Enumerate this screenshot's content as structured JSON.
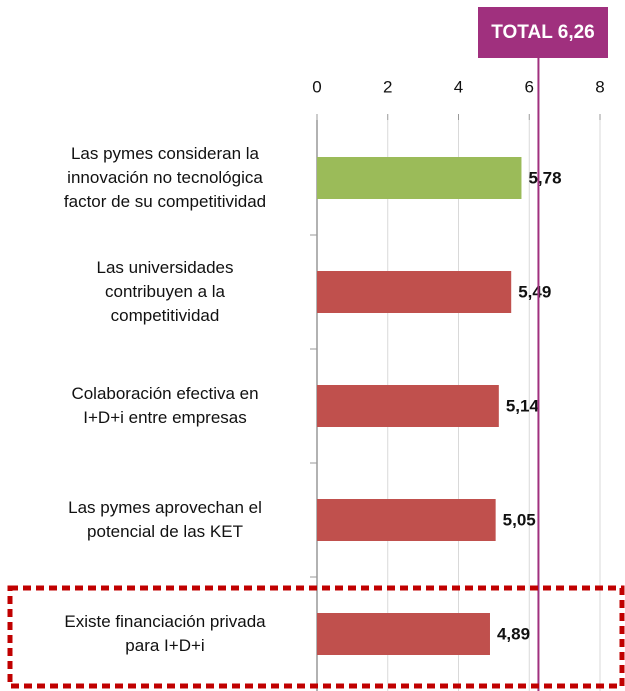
{
  "chart_data": {
    "type": "barh",
    "categories": [
      "Las pymes consideran la\ninnovación no tecnológica\nfactor de su competitividad",
      "Las universidades\ncontribuyen a la\ncompetitividad",
      "Colaboración efectiva en\nI+D+i entre empresas",
      "Las pymes aprovechan el\npotencial de las KET",
      "Existe financiación privada\npara I+D+i"
    ],
    "values": [
      5.78,
      5.49,
      5.14,
      5.05,
      4.89
    ],
    "value_labels": [
      "5,78",
      "5,49",
      "5,14",
      "5,05",
      "4,89"
    ],
    "colors": [
      "#9BBB59",
      "#C0504D",
      "#C0504D",
      "#C0504D",
      "#C0504D"
    ],
    "xlim": [
      0,
      8
    ],
    "xticks": [
      0,
      2,
      4,
      6,
      8
    ],
    "grid": true,
    "reference_line": {
      "value": 6.26,
      "label": "TOTAL 6,26",
      "color": "#A0307E"
    }
  }
}
